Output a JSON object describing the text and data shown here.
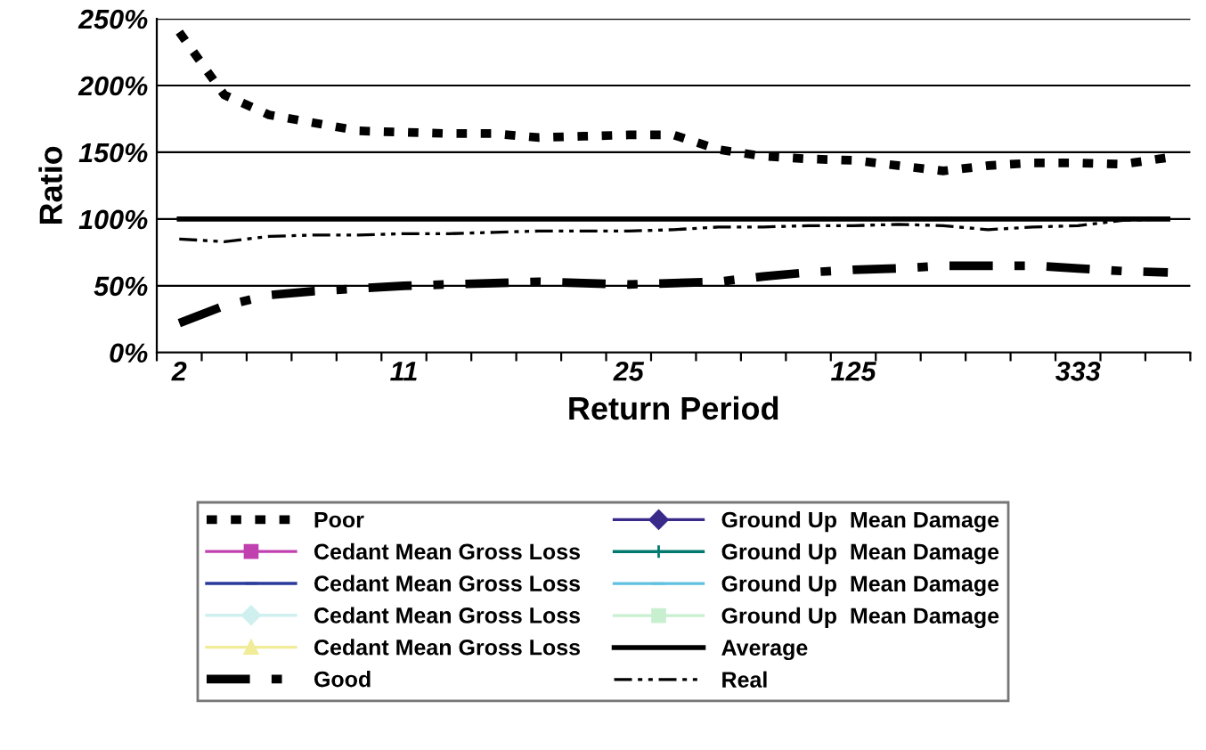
{
  "chart_data": {
    "type": "line",
    "xlabel": "Return Period",
    "ylabel": "Ratio",
    "categories": [
      "2",
      null,
      null,
      null,
      null,
      "11",
      null,
      null,
      null,
      null,
      "25",
      null,
      null,
      null,
      null,
      "125",
      null,
      null,
      null,
      null,
      "333",
      null,
      null
    ],
    "ylim": [
      0,
      250
    ],
    "yticks": [
      {
        "value": 0,
        "label": "0%"
      },
      {
        "value": 50,
        "label": "50%"
      },
      {
        "value": 100,
        "label": "100%"
      },
      {
        "value": 150,
        "label": "150%"
      },
      {
        "value": 200,
        "label": "200%"
      },
      {
        "value": 250,
        "label": "250%"
      }
    ],
    "grid": "y",
    "legend": "bottom",
    "marker": "none",
    "series": [
      {
        "name": "Poor",
        "color": "#000000",
        "line_style": "dotted",
        "values": [
          240,
          193,
          178,
          172,
          166,
          165,
          164,
          164,
          161,
          162,
          163,
          163,
          152,
          147,
          145,
          144,
          140,
          136,
          140,
          142,
          142,
          141,
          146
        ]
      },
      {
        "name": "Cedant Mean Gross Loss",
        "color": "#c040b0",
        "marker": "square",
        "values": [
          null,
          null,
          null,
          null,
          null,
          null,
          null,
          null,
          null,
          null,
          null,
          null,
          null,
          null,
          null,
          null,
          null,
          null,
          null,
          null,
          null,
          null,
          null
        ]
      },
      {
        "name": "Cedant Mean Gross Loss",
        "color": "#2a3a9a",
        "marker": "dash",
        "values": [
          null,
          null,
          null,
          null,
          null,
          null,
          null,
          null,
          null,
          null,
          null,
          null,
          null,
          null,
          null,
          null,
          null,
          null,
          null,
          null,
          null,
          null,
          null
        ]
      },
      {
        "name": "Cedant Mean Gross Loss",
        "color": "#d0f0f0",
        "marker": "diamond",
        "values": [
          null,
          null,
          null,
          null,
          null,
          null,
          null,
          null,
          null,
          null,
          null,
          null,
          null,
          null,
          null,
          null,
          null,
          null,
          null,
          null,
          null,
          null,
          null
        ]
      },
      {
        "name": "Cedant Mean Gross Loss",
        "color": "#f0ec98",
        "marker": "triangle",
        "values": [
          null,
          null,
          null,
          null,
          null,
          null,
          null,
          null,
          null,
          null,
          null,
          null,
          null,
          null,
          null,
          null,
          null,
          null,
          null,
          null,
          null,
          null,
          null
        ]
      },
      {
        "name": "Good",
        "color": "#000000",
        "line_style": "dashed",
        "values": [
          22,
          35,
          43,
          46,
          48,
          50,
          51,
          52,
          53,
          52,
          51,
          52,
          53,
          57,
          60,
          62,
          63,
          65,
          65,
          65,
          63,
          61,
          60
        ]
      },
      {
        "name": "Ground Up  Mean Damage",
        "color": "#3a2a8a",
        "marker": "diamond",
        "values": [
          null,
          null,
          null,
          null,
          null,
          null,
          null,
          null,
          null,
          null,
          null,
          null,
          null,
          null,
          null,
          null,
          null,
          null,
          null,
          null,
          null,
          null,
          null
        ]
      },
      {
        "name": "Ground Up  Mean Damage",
        "color": "#007a70",
        "marker": "plus",
        "values": [
          null,
          null,
          null,
          null,
          null,
          null,
          null,
          null,
          null,
          null,
          null,
          null,
          null,
          null,
          null,
          null,
          null,
          null,
          null,
          null,
          null,
          null,
          null
        ]
      },
      {
        "name": "Ground Up  Mean Damage",
        "color": "#60c0e0",
        "marker": "dash",
        "values": [
          null,
          null,
          null,
          null,
          null,
          null,
          null,
          null,
          null,
          null,
          null,
          null,
          null,
          null,
          null,
          null,
          null,
          null,
          null,
          null,
          null,
          null,
          null
        ]
      },
      {
        "name": "Ground Up  Mean Damage",
        "color": "#c8f0d0",
        "marker": "square",
        "values": [
          null,
          null,
          null,
          null,
          null,
          null,
          null,
          null,
          null,
          null,
          null,
          null,
          null,
          null,
          null,
          null,
          null,
          null,
          null,
          null,
          null,
          null,
          null
        ]
      },
      {
        "name": "Average",
        "color": "#000000",
        "line_style": "solid",
        "values": [
          100,
          100,
          100,
          100,
          100,
          100,
          100,
          100,
          100,
          100,
          100,
          100,
          100,
          100,
          100,
          100,
          100,
          100,
          100,
          100,
          100,
          100,
          100
        ]
      },
      {
        "name": "Real",
        "color": "#000000",
        "line_style": "dashdotdot",
        "values": [
          85,
          83,
          87,
          88,
          88,
          89,
          89,
          90,
          91,
          91,
          91,
          92,
          94,
          94,
          95,
          95,
          96,
          95,
          92,
          94,
          95,
          99,
          100
        ]
      }
    ]
  }
}
